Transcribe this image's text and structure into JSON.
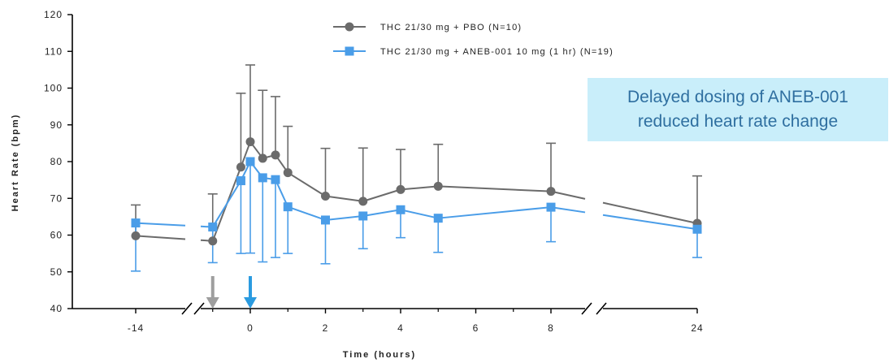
{
  "chart_data": {
    "type": "line",
    "xlabel": "Time (hours)",
    "ylabel": "Heart Rate (bpm)",
    "ylim": [
      40,
      120
    ],
    "yticks": [
      40,
      50,
      60,
      70,
      80,
      90,
      100,
      110,
      120
    ],
    "xticks": [
      "-14",
      "0",
      "2",
      "4",
      "6",
      "8",
      "24"
    ],
    "axis_breaks": [
      "between -14 and -1 hours",
      "between 8 and 24 hours"
    ],
    "dose_markers": [
      {
        "x": -1,
        "color": "#9e9e9e"
      },
      {
        "x": 0,
        "color": "#2b9be0"
      }
    ],
    "series": [
      {
        "name": "THC 21/30 mg + PBO (N=10)",
        "color": "#6b6b6b",
        "marker": "circle",
        "points": [
          {
            "x": -14,
            "y": 59.8,
            "err_upper": 68.2
          },
          {
            "x": -1,
            "y": 58.4,
            "err_upper": 71.2
          },
          {
            "x": -0.25,
            "y": 78.5,
            "err_upper": 98.6
          },
          {
            "x": 0,
            "y": 85.4,
            "err_upper": 106.3
          },
          {
            "x": 0.33,
            "y": 80.9,
            "err_upper": 99.4
          },
          {
            "x": 0.67,
            "y": 81.8,
            "err_upper": 97.7
          },
          {
            "x": 1,
            "y": 77.0,
            "err_upper": 89.6
          },
          {
            "x": 2,
            "y": 70.6,
            "err_upper": 83.6
          },
          {
            "x": 3,
            "y": 69.2,
            "err_upper": 83.7
          },
          {
            "x": 4,
            "y": 72.4,
            "err_upper": 83.3
          },
          {
            "x": 5,
            "y": 73.3,
            "err_upper": 84.7
          },
          {
            "x": 8,
            "y": 71.9,
            "err_upper": 85.0
          },
          {
            "x": 24,
            "y": 63.2,
            "err_upper": 76.1
          }
        ]
      },
      {
        "name": "THC 21/30 mg + ANEB-001 10 mg (1 hr) (N=19)",
        "color": "#4a9de8",
        "marker": "square",
        "points": [
          {
            "x": -14,
            "y": 63.3,
            "err_lower": 50.2
          },
          {
            "x": -1,
            "y": 62.2,
            "err_lower": 52.5
          },
          {
            "x": -0.25,
            "y": 74.8,
            "err_lower": 55.0
          },
          {
            "x": 0,
            "y": 80.0,
            "err_lower": 55.1
          },
          {
            "x": 0.33,
            "y": 75.6,
            "err_lower": 52.7
          },
          {
            "x": 0.67,
            "y": 75.1,
            "err_lower": 53.9
          },
          {
            "x": 1,
            "y": 67.7,
            "err_lower": 55.0
          },
          {
            "x": 2,
            "y": 64.1,
            "err_lower": 52.2
          },
          {
            "x": 3,
            "y": 65.2,
            "err_lower": 56.3
          },
          {
            "x": 4,
            "y": 66.9,
            "err_lower": 59.3
          },
          {
            "x": 5,
            "y": 64.6,
            "err_lower": 55.3
          },
          {
            "x": 8,
            "y": 67.6,
            "err_lower": 58.2
          },
          {
            "x": 24,
            "y": 61.6,
            "err_lower": 53.9
          }
        ]
      }
    ],
    "legend_position": "top-center",
    "annotation": [
      "Delayed dosing of ANEB-001",
      "reduced heart rate change"
    ]
  }
}
